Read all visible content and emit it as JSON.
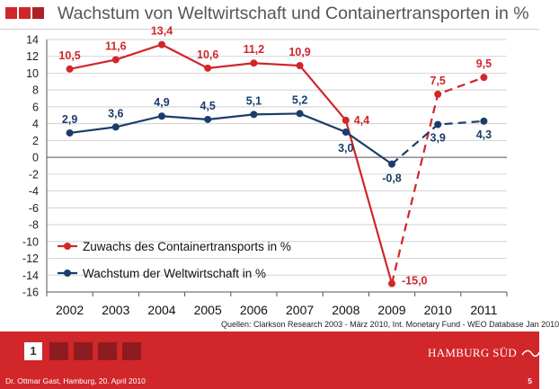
{
  "slide": {
    "title": "Wachstum von Weltwirtschaft und Containertransporten in %",
    "source": "Quellen: Clarkson Research 2003 - März 2010, Int. Monetary Fund - WEO Database Jan 2010",
    "footer_author": "Dr. Ottmar Gast, Hamburg, 20. April 2010",
    "page_number": "5",
    "slide_index": "1",
    "logo_text": "HAMBURG SÜD"
  },
  "colors": {
    "brand_red": "#d1262a",
    "dark_red": "#8e1b1f",
    "mid_red": "#a82226",
    "navy": "#1a3d6b",
    "grid": "#c9c9c9"
  },
  "chart_data": {
    "type": "line",
    "title": "Wachstum von Weltwirtschaft und Containertransporten in %",
    "xlabel": "",
    "ylabel": "",
    "categories": [
      "2002",
      "2003",
      "2004",
      "2005",
      "2006",
      "2007",
      "2008",
      "2009",
      "2010",
      "2011"
    ],
    "ylim": [
      -16,
      14
    ],
    "ytick_step": 2,
    "grid": "horizontal",
    "legend_position": "left-lower",
    "series": [
      {
        "name": "Zuwachs des Containertransports in %",
        "color": "#d1262a",
        "values": [
          10.5,
          11.6,
          13.4,
          10.6,
          11.2,
          10.9,
          4.4,
          -15.0,
          7.5,
          9.5
        ],
        "labels": [
          "10,5",
          "11,6",
          "13,4",
          "10,6",
          "11,2",
          "10,9",
          "4,4",
          "-15,0",
          "7,5",
          "9,5"
        ],
        "dashed_from": "2009"
      },
      {
        "name": "Wachstum der Weltwirtschaft in %",
        "color": "#1a3d6b",
        "values": [
          2.9,
          3.6,
          4.9,
          4.5,
          5.1,
          5.2,
          3.0,
          -0.8,
          3.9,
          4.3
        ],
        "labels": [
          "2,9",
          "3,6",
          "4,9",
          "4,5",
          "5,1",
          "5,2",
          "3,0",
          "-0,8",
          "3,9",
          "4,3"
        ],
        "dashed_from": "2009"
      }
    ]
  }
}
